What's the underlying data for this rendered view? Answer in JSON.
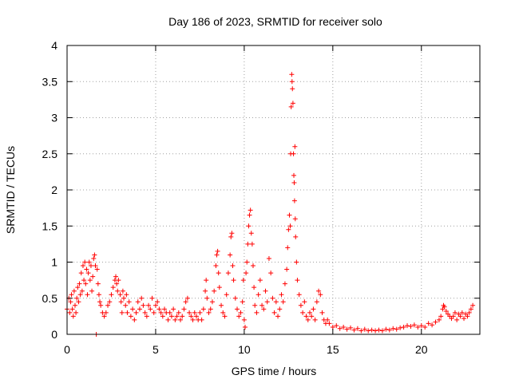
{
  "chart_data": {
    "type": "scatter",
    "title": "Day 186 of 2023, SRMTID for receiver solo",
    "xlabel": "GPS time / hours",
    "ylabel": "SRMTID / TECUs",
    "xlim": [
      0,
      23.3
    ],
    "ylim": [
      0,
      4
    ],
    "x_ticks": [
      0,
      5,
      10,
      15,
      20
    ],
    "x_tick_labels": [
      "0",
      "5",
      "10",
      "15",
      "20"
    ],
    "y_ticks": [
      0,
      0.5,
      1,
      1.5,
      2,
      2.5,
      3,
      3.5,
      4
    ],
    "y_tick_labels": [
      "0",
      "0.5",
      "1",
      "1.5",
      "2",
      "2.5",
      "3",
      "3.5",
      "4"
    ],
    "grid": true,
    "marker": "+",
    "marker_color": "#ff0000",
    "series": [
      {
        "name": "solo",
        "points": [
          [
            0.0,
            0.35
          ],
          [
            0.1,
            0.5
          ],
          [
            0.15,
            0.3
          ],
          [
            0.2,
            0.45
          ],
          [
            0.25,
            0.55
          ],
          [
            0.3,
            0.35
          ],
          [
            0.35,
            0.25
          ],
          [
            0.4,
            0.6
          ],
          [
            0.45,
            0.4
          ],
          [
            0.5,
            0.3
          ],
          [
            0.55,
            0.5
          ],
          [
            0.6,
            0.65
          ],
          [
            0.65,
            0.45
          ],
          [
            0.7,
            0.7
          ],
          [
            0.75,
            0.55
          ],
          [
            0.8,
            0.85
          ],
          [
            0.85,
            0.6
          ],
          [
            0.9,
            0.95
          ],
          [
            0.95,
            0.75
          ],
          [
            1.0,
            1.0
          ],
          [
            1.05,
            0.7
          ],
          [
            1.1,
            0.9
          ],
          [
            1.15,
            0.55
          ],
          [
            1.2,
            0.85
          ],
          [
            1.25,
            1.0
          ],
          [
            1.3,
            0.75
          ],
          [
            1.35,
            0.95
          ],
          [
            1.4,
            0.6
          ],
          [
            1.45,
            0.8
          ],
          [
            1.5,
            1.05
          ],
          [
            1.55,
            1.1
          ],
          [
            1.6,
            0.95
          ],
          [
            1.65,
            0.0
          ],
          [
            1.7,
            0.9
          ],
          [
            1.75,
            0.7
          ],
          [
            1.8,
            0.55
          ],
          [
            1.85,
            0.45
          ],
          [
            1.9,
            0.4
          ],
          [
            2.0,
            0.3
          ],
          [
            2.1,
            0.25
          ],
          [
            2.2,
            0.3
          ],
          [
            2.3,
            0.4
          ],
          [
            2.4,
            0.45
          ],
          [
            2.5,
            0.55
          ],
          [
            2.6,
            0.65
          ],
          [
            2.7,
            0.75
          ],
          [
            2.75,
            0.8
          ],
          [
            2.8,
            0.7
          ],
          [
            2.85,
            0.6
          ],
          [
            2.9,
            0.75
          ],
          [
            3.0,
            0.55
          ],
          [
            3.05,
            0.45
          ],
          [
            3.1,
            0.3
          ],
          [
            3.15,
            0.6
          ],
          [
            3.2,
            0.5
          ],
          [
            3.3,
            0.4
          ],
          [
            3.35,
            0.55
          ],
          [
            3.4,
            0.3
          ],
          [
            3.5,
            0.45
          ],
          [
            3.6,
            0.25
          ],
          [
            3.7,
            0.35
          ],
          [
            3.8,
            0.2
          ],
          [
            3.9,
            0.3
          ],
          [
            4.0,
            0.45
          ],
          [
            4.1,
            0.35
          ],
          [
            4.2,
            0.5
          ],
          [
            4.3,
            0.4
          ],
          [
            4.4,
            0.3
          ],
          [
            4.5,
            0.25
          ],
          [
            4.6,
            0.4
          ],
          [
            4.7,
            0.35
          ],
          [
            4.8,
            0.5
          ],
          [
            4.9,
            0.3
          ],
          [
            5.0,
            0.4
          ],
          [
            5.1,
            0.45
          ],
          [
            5.2,
            0.35
          ],
          [
            5.3,
            0.3
          ],
          [
            5.4,
            0.25
          ],
          [
            5.5,
            0.35
          ],
          [
            5.6,
            0.3
          ],
          [
            5.7,
            0.2
          ],
          [
            5.8,
            0.3
          ],
          [
            5.9,
            0.25
          ],
          [
            6.0,
            0.35
          ],
          [
            6.1,
            0.2
          ],
          [
            6.2,
            0.25
          ],
          [
            6.3,
            0.3
          ],
          [
            6.4,
            0.2
          ],
          [
            6.5,
            0.25
          ],
          [
            6.6,
            0.35
          ],
          [
            6.7,
            0.45
          ],
          [
            6.8,
            0.5
          ],
          [
            6.9,
            0.3
          ],
          [
            7.0,
            0.25
          ],
          [
            7.1,
            0.2
          ],
          [
            7.2,
            0.3
          ],
          [
            7.3,
            0.25
          ],
          [
            7.4,
            0.2
          ],
          [
            7.5,
            0.3
          ],
          [
            7.6,
            0.2
          ],
          [
            7.7,
            0.35
          ],
          [
            7.8,
            0.6
          ],
          [
            7.85,
            0.75
          ],
          [
            7.9,
            0.5
          ],
          [
            8.0,
            0.3
          ],
          [
            8.1,
            0.35
          ],
          [
            8.2,
            0.45
          ],
          [
            8.3,
            0.6
          ],
          [
            8.4,
            0.95
          ],
          [
            8.45,
            1.1
          ],
          [
            8.5,
            1.15
          ],
          [
            8.55,
            0.85
          ],
          [
            8.6,
            0.65
          ],
          [
            8.7,
            0.4
          ],
          [
            8.8,
            0.3
          ],
          [
            8.9,
            0.25
          ],
          [
            9.0,
            0.55
          ],
          [
            9.1,
            0.85
          ],
          [
            9.2,
            1.1
          ],
          [
            9.25,
            1.35
          ],
          [
            9.3,
            1.4
          ],
          [
            9.35,
            0.95
          ],
          [
            9.4,
            0.75
          ],
          [
            9.5,
            0.5
          ],
          [
            9.6,
            0.35
          ],
          [
            9.7,
            0.25
          ],
          [
            9.8,
            0.3
          ],
          [
            9.9,
            0.45
          ],
          [
            9.95,
            0.75
          ],
          [
            10.0,
            0.2
          ],
          [
            10.05,
            0.1
          ],
          [
            10.1,
            0.85
          ],
          [
            10.15,
            1.0
          ],
          [
            10.2,
            1.25
          ],
          [
            10.25,
            1.5
          ],
          [
            10.3,
            1.65
          ],
          [
            10.35,
            1.72
          ],
          [
            10.4,
            1.4
          ],
          [
            10.45,
            1.25
          ],
          [
            10.5,
            0.95
          ],
          [
            10.55,
            0.65
          ],
          [
            10.6,
            0.4
          ],
          [
            10.7,
            0.3
          ],
          [
            10.8,
            0.55
          ],
          [
            10.9,
            0.75
          ],
          [
            11.0,
            0.4
          ],
          [
            11.1,
            0.35
          ],
          [
            11.2,
            0.6
          ],
          [
            11.3,
            0.45
          ],
          [
            11.4,
            1.05
          ],
          [
            11.5,
            0.85
          ],
          [
            11.6,
            0.5
          ],
          [
            11.7,
            0.3
          ],
          [
            11.8,
            0.45
          ],
          [
            11.9,
            0.25
          ],
          [
            12.0,
            0.35
          ],
          [
            12.1,
            0.55
          ],
          [
            12.2,
            0.45
          ],
          [
            12.3,
            0.7
          ],
          [
            12.4,
            0.9
          ],
          [
            12.45,
            1.2
          ],
          [
            12.5,
            1.45
          ],
          [
            12.55,
            1.65
          ],
          [
            12.6,
            1.5
          ],
          [
            12.62,
            2.5
          ],
          [
            12.65,
            3.15
          ],
          [
            12.68,
            3.6
          ],
          [
            12.7,
            3.5
          ],
          [
            12.72,
            3.4
          ],
          [
            12.75,
            3.2
          ],
          [
            12.78,
            2.5
          ],
          [
            12.8,
            2.2
          ],
          [
            12.82,
            2.1
          ],
          [
            12.84,
            1.85
          ],
          [
            12.86,
            2.6
          ],
          [
            12.88,
            1.6
          ],
          [
            12.9,
            1.35
          ],
          [
            12.95,
            1.0
          ],
          [
            13.0,
            0.75
          ],
          [
            13.1,
            0.55
          ],
          [
            13.2,
            0.4
          ],
          [
            13.3,
            0.3
          ],
          [
            13.4,
            0.45
          ],
          [
            13.5,
            0.25
          ],
          [
            13.6,
            0.2
          ],
          [
            13.7,
            0.3
          ],
          [
            13.8,
            0.25
          ],
          [
            13.9,
            0.35
          ],
          [
            14.0,
            0.2
          ],
          [
            14.1,
            0.45
          ],
          [
            14.2,
            0.6
          ],
          [
            14.3,
            0.55
          ],
          [
            14.4,
            0.3
          ],
          [
            14.5,
            0.2
          ],
          [
            14.6,
            0.15
          ],
          [
            14.7,
            0.2
          ],
          [
            14.8,
            0.15
          ],
          [
            15.0,
            0.1
          ],
          [
            15.2,
            0.12
          ],
          [
            15.4,
            0.08
          ],
          [
            15.6,
            0.1
          ],
          [
            15.8,
            0.07
          ],
          [
            16.0,
            0.09
          ],
          [
            16.2,
            0.06
          ],
          [
            16.4,
            0.08
          ],
          [
            16.6,
            0.05
          ],
          [
            16.8,
            0.07
          ],
          [
            17.0,
            0.05
          ],
          [
            17.2,
            0.06
          ],
          [
            17.4,
            0.05
          ],
          [
            17.6,
            0.06
          ],
          [
            17.8,
            0.05
          ],
          [
            18.0,
            0.07
          ],
          [
            18.2,
            0.06
          ],
          [
            18.4,
            0.08
          ],
          [
            18.6,
            0.07
          ],
          [
            18.8,
            0.09
          ],
          [
            19.0,
            0.1
          ],
          [
            19.2,
            0.12
          ],
          [
            19.4,
            0.11
          ],
          [
            19.6,
            0.13
          ],
          [
            19.8,
            0.1
          ],
          [
            20.0,
            0.12
          ],
          [
            20.2,
            0.1
          ],
          [
            20.4,
            0.15
          ],
          [
            20.6,
            0.13
          ],
          [
            20.8,
            0.17
          ],
          [
            21.0,
            0.2
          ],
          [
            21.1,
            0.25
          ],
          [
            21.2,
            0.35
          ],
          [
            21.25,
            0.4
          ],
          [
            21.3,
            0.38
          ],
          [
            21.4,
            0.32
          ],
          [
            21.5,
            0.28
          ],
          [
            21.6,
            0.25
          ],
          [
            21.7,
            0.22
          ],
          [
            21.8,
            0.25
          ],
          [
            21.9,
            0.3
          ],
          [
            22.0,
            0.2
          ],
          [
            22.1,
            0.28
          ],
          [
            22.2,
            0.25
          ],
          [
            22.3,
            0.3
          ],
          [
            22.4,
            0.22
          ],
          [
            22.5,
            0.28
          ],
          [
            22.6,
            0.25
          ],
          [
            22.7,
            0.3
          ],
          [
            22.8,
            0.35
          ],
          [
            22.9,
            0.4
          ]
        ]
      }
    ]
  }
}
